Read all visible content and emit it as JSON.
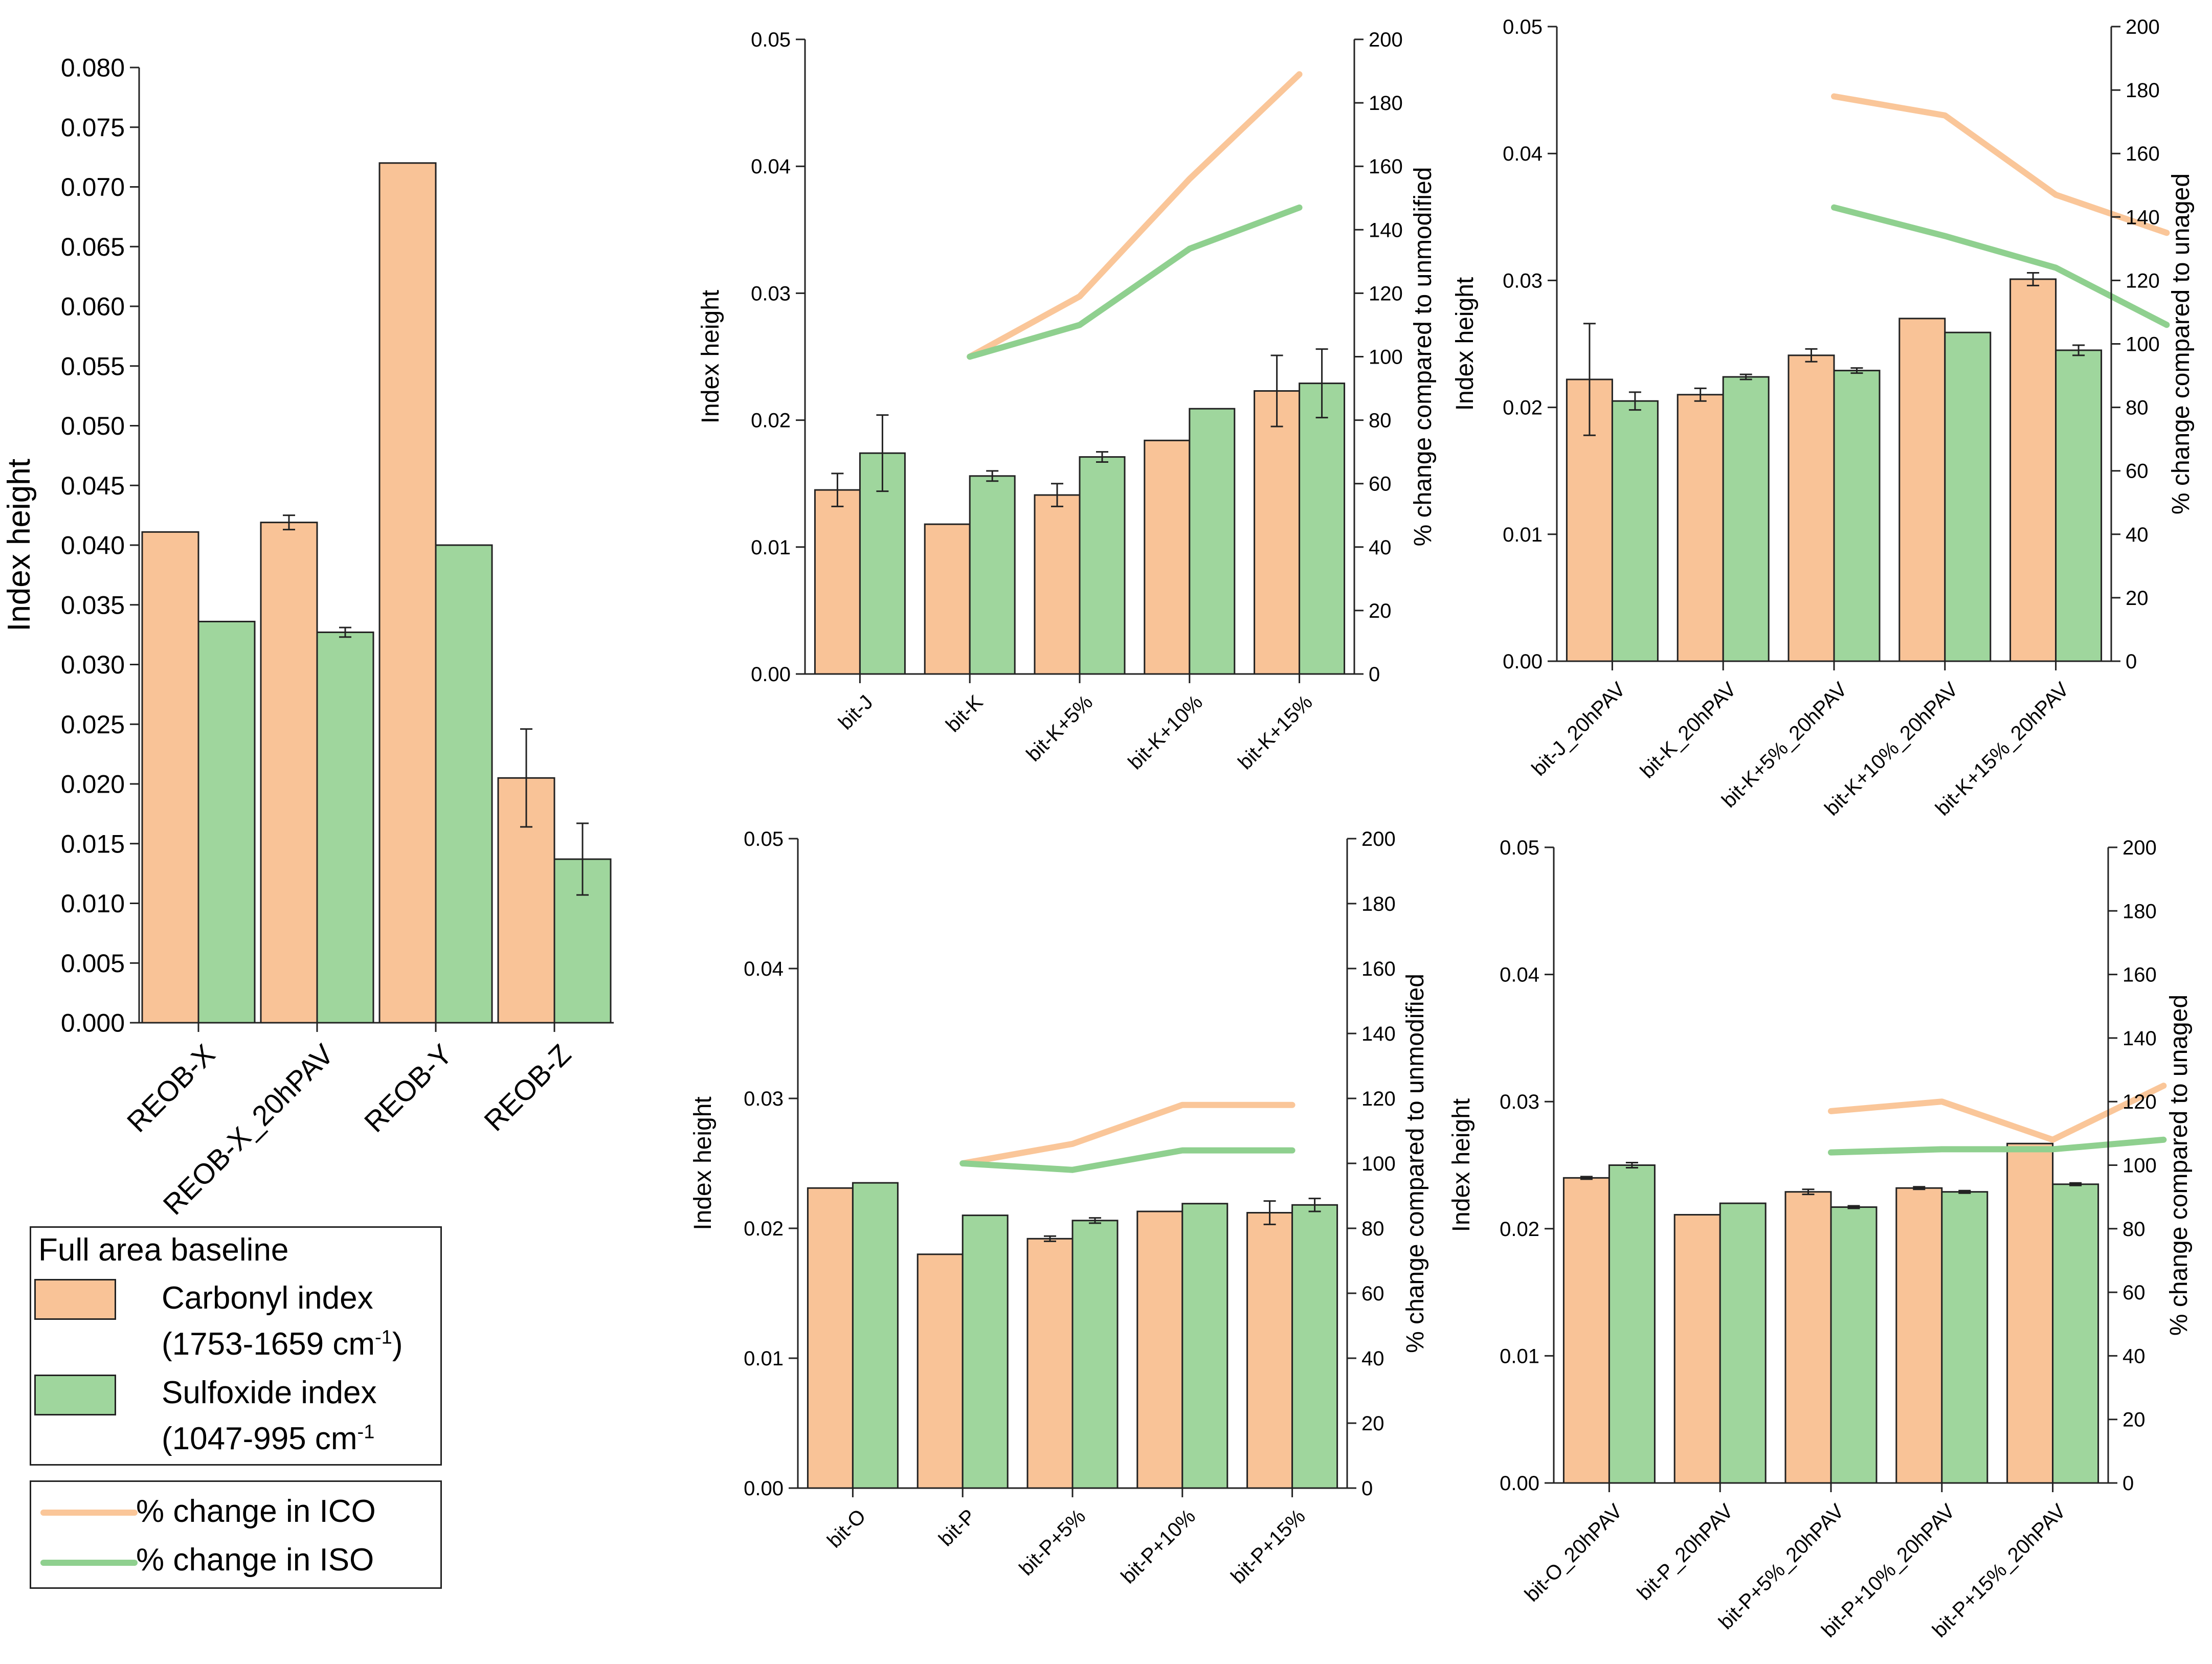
{
  "colors": {
    "carbonyl": "#F9C397",
    "sulfoxide": "#9FD69D",
    "ico_line": "#FAC699",
    "iso_line": "#8FD08F",
    "bar_border": "#222222",
    "axis": "#222222"
  },
  "legend": {
    "title": "Full area baseline",
    "carbonyl_label": "Carbonyl index",
    "carbonyl_range": "(1753-1659 cm",
    "carbonyl_sup": "-1",
    "carbonyl_close": ")",
    "sulfoxide_label": "Sulfoxide index",
    "sulfoxide_range": "(1047-995 cm",
    "sulfoxide_sup": "-1",
    "ico_label": "% change in ICO",
    "iso_label": "% change in ISO"
  },
  "chart_data": [
    {
      "type": "bar",
      "ylabel": "Index height",
      "categories": [
        "REOB-X",
        "REOB-X_20hPAV",
        "REOB-Y",
        "REOB-Z"
      ],
      "series": [
        {
          "name": "Carbonyl index",
          "values": [
            0.0411,
            0.0419,
            0.072,
            0.0205
          ],
          "errors": [
            0,
            0.0006,
            0,
            0.0041
          ]
        },
        {
          "name": "Sulfoxide index",
          "values": [
            0.0336,
            0.0327,
            0.04,
            0.0137
          ],
          "errors": [
            0,
            0.0004,
            0,
            0.003
          ]
        }
      ],
      "ylim": [
        0,
        0.08
      ],
      "yticks": [
        "0.000",
        "0.005",
        "0.010",
        "0.015",
        "0.020",
        "0.025",
        "0.030",
        "0.035",
        "0.040",
        "0.045",
        "0.050",
        "0.055",
        "0.060",
        "0.065",
        "0.070",
        "0.075",
        "0.080"
      ]
    },
    {
      "type": "bar",
      "ylabel": "Index height",
      "y2label": "% change compared to unmodified",
      "categories": [
        "bit-J",
        "bit-K",
        "bit-K+5%",
        "bit-K+10%",
        "bit-K+15%"
      ],
      "series": [
        {
          "name": "Carbonyl index",
          "values": [
            0.0145,
            0.0118,
            0.0141,
            0.0184,
            0.0223
          ],
          "errors": [
            0.0013,
            0,
            0.0009,
            0,
            0.0028
          ]
        },
        {
          "name": "Sulfoxide index",
          "values": [
            0.0174,
            0.0156,
            0.0171,
            0.0209,
            0.0229
          ],
          "errors": [
            0.003,
            0.0004,
            0.0004,
            0,
            0.0027
          ]
        }
      ],
      "lines": [
        {
          "name": "% change in ICO",
          "start": 1,
          "values": [
            100,
            119,
            156,
            189
          ]
        },
        {
          "name": "% change in ISO",
          "start": 1,
          "values": [
            100,
            110,
            134,
            147
          ]
        }
      ],
      "ylim": [
        0,
        0.05
      ],
      "yticks": [
        "0.00",
        "0.01",
        "0.02",
        "0.03",
        "0.04",
        "0.05"
      ],
      "y2lim": [
        0,
        200
      ],
      "y2ticks": [
        "0",
        "20",
        "40",
        "60",
        "80",
        "100",
        "120",
        "140",
        "160",
        "180",
        "200"
      ]
    },
    {
      "type": "bar",
      "ylabel": "Index height",
      "y2label": "% change compared to unaged",
      "categories": [
        "bit-J_20hPAV",
        "bit-K_20hPAV",
        "bit-K+5%_20hPAV",
        "bit-K+10%_20hPAV",
        "bit-K+15%_20hPAV"
      ],
      "series": [
        {
          "name": "Carbonyl index",
          "values": [
            0.0222,
            0.021,
            0.0241,
            0.027,
            0.0301
          ],
          "errors": [
            0.0044,
            0.0005,
            0.0005,
            0,
            0.0005
          ]
        },
        {
          "name": "Sulfoxide index",
          "values": [
            0.0205,
            0.0224,
            0.0229,
            0.0259,
            0.0245
          ],
          "errors": [
            0.0007,
            0.0002,
            0.0002,
            0,
            0.0004
          ]
        }
      ],
      "lines": [
        {
          "name": "% change in ICO",
          "start": 2,
          "values": [
            178,
            172,
            147,
            135
          ]
        },
        {
          "name": "% change in ISO",
          "start": 2,
          "values": [
            143,
            134,
            124,
            106
          ]
        }
      ],
      "ylim": [
        0,
        0.05
      ],
      "yticks": [
        "0.00",
        "0.01",
        "0.02",
        "0.03",
        "0.04",
        "0.05"
      ],
      "y2lim": [
        0,
        200
      ],
      "y2ticks": [
        "0",
        "20",
        "40",
        "60",
        "80",
        "100",
        "120",
        "140",
        "160",
        "180",
        "200"
      ]
    },
    {
      "type": "bar",
      "ylabel": "Index height",
      "y2label": "% change compared to unmodified",
      "categories": [
        "bit-O",
        "bit-P",
        "bit-P+5%",
        "bit-P+10%",
        "bit-P+15%"
      ],
      "series": [
        {
          "name": "Carbonyl index",
          "values": [
            0.0231,
            0.018,
            0.0192,
            0.0213,
            0.0212
          ],
          "errors": [
            0,
            0,
            0.0002,
            0,
            0.0009
          ]
        },
        {
          "name": "Sulfoxide index",
          "values": [
            0.0235,
            0.021,
            0.0206,
            0.0219,
            0.0218
          ],
          "errors": [
            0,
            0,
            0.0002,
            0,
            0.0005
          ]
        }
      ],
      "lines": [
        {
          "name": "% change in ICO",
          "start": 1,
          "values": [
            100,
            106,
            118,
            118
          ]
        },
        {
          "name": "% change in ISO",
          "start": 1,
          "values": [
            100,
            98,
            104,
            104
          ]
        }
      ],
      "ylim": [
        0,
        0.05
      ],
      "yticks": [
        "0.00",
        "0.01",
        "0.02",
        "0.03",
        "0.04",
        "0.05"
      ],
      "y2lim": [
        0,
        200
      ],
      "y2ticks": [
        "0",
        "20",
        "40",
        "60",
        "80",
        "100",
        "120",
        "140",
        "160",
        "180",
        "200"
      ]
    },
    {
      "type": "bar",
      "ylabel": "Index height",
      "y2label": "% change compared to unaged",
      "categories": [
        "bit-O_20hPAV",
        "bit-P_20hPAV",
        "bit-P+5%_20hPAV",
        "bit-P+10%_20hPAV",
        "bit-P+15%_20hPAV"
      ],
      "series": [
        {
          "name": "Carbonyl index",
          "values": [
            0.024,
            0.0211,
            0.0229,
            0.0232,
            0.0267
          ],
          "errors": [
            0.0001,
            0,
            0.0002,
            0.0001,
            0
          ]
        },
        {
          "name": "Sulfoxide index",
          "values": [
            0.025,
            0.022,
            0.0217,
            0.0229,
            0.0235
          ],
          "errors": [
            0.0002,
            0,
            0.0001,
            0.0001,
            0.0001
          ]
        }
      ],
      "lines": [
        {
          "name": "% change in ICO",
          "start": 2,
          "values": [
            117,
            120,
            108,
            125
          ]
        },
        {
          "name": "% change in ISO",
          "start": 2,
          "values": [
            104,
            105,
            105,
            108
          ]
        }
      ],
      "ylim": [
        0,
        0.05
      ],
      "yticks": [
        "0.00",
        "0.01",
        "0.02",
        "0.03",
        "0.04",
        "0.05"
      ],
      "y2lim": [
        0,
        200
      ],
      "y2ticks": [
        "0",
        "20",
        "40",
        "60",
        "80",
        "100",
        "120",
        "140",
        "160",
        "180",
        "200"
      ]
    }
  ]
}
